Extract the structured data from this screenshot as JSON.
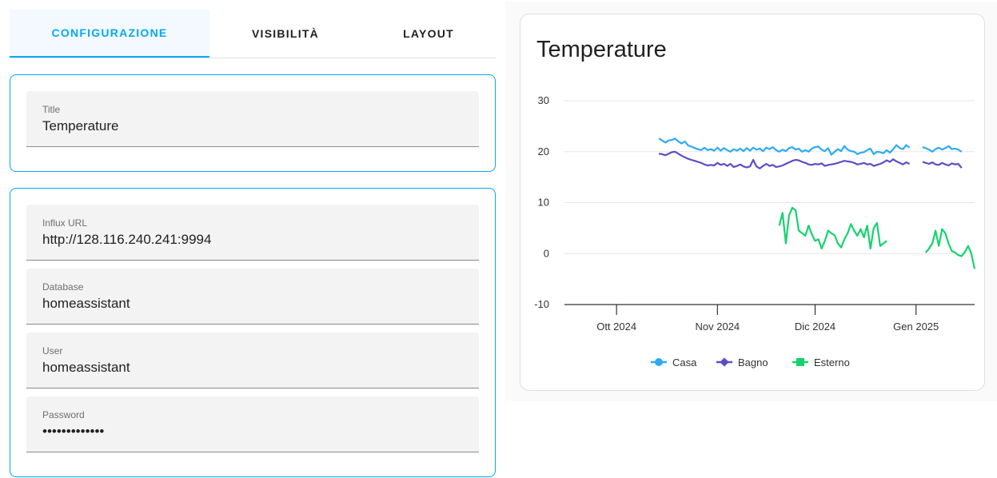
{
  "tabs": [
    {
      "label": "CONFIGURAZIONE",
      "active": true
    },
    {
      "label": "VISIBILITÀ",
      "active": false
    },
    {
      "label": "LAYOUT",
      "active": false
    }
  ],
  "title_field": {
    "label": "Title",
    "value": "Temperature"
  },
  "connection_fields": {
    "influx_url": {
      "label": "Influx URL",
      "value": "http://128.116.240.241:9994"
    },
    "database": {
      "label": "Database",
      "value": "homeassistant"
    },
    "user": {
      "label": "User",
      "value": "homeassistant"
    },
    "password": {
      "label": "Password",
      "value": "•••••••••••••"
    }
  },
  "colors": {
    "accent": "#03a9f4",
    "casa": "#2eaaf3",
    "bagno": "#5a4ec5",
    "esterno": "#16d26e"
  },
  "chart_data": {
    "type": "line",
    "title": "Temperature",
    "xlabel": "",
    "ylabel": "",
    "ylim": [
      -10,
      30
    ],
    "yticks": [
      "30",
      "20",
      "10",
      "0",
      "-10"
    ],
    "xticks": [
      {
        "label": "Ott 2024",
        "day": 0
      },
      {
        "label": "Nov 2024",
        "day": 31
      },
      {
        "label": "Dic 2024",
        "day": 61
      },
      {
        "label": "Gen 2025",
        "day": 92
      }
    ],
    "x_unit": "days since 2024-10-01",
    "grid": true,
    "legend_position": "bottom",
    "series": [
      {
        "name": "Casa",
        "color": "#2eaaf3",
        "marker": "circle",
        "segments": [
          [
            [
              13,
              22.6
            ],
            [
              14,
              22.2
            ],
            [
              15,
              21.8
            ],
            [
              16,
              22.2
            ],
            [
              17,
              22.3
            ],
            [
              18,
              22.6
            ],
            [
              19,
              22.0
            ],
            [
              20,
              21.6
            ],
            [
              21,
              22.0
            ],
            [
              22,
              21.2
            ],
            [
              23,
              21.0
            ],
            [
              24,
              20.7
            ],
            [
              25,
              20.5
            ],
            [
              26,
              20.3
            ],
            [
              27,
              20.8
            ],
            [
              28,
              20.3
            ],
            [
              29,
              20.5
            ],
            [
              30,
              20.2
            ],
            [
              31,
              20.8
            ],
            [
              32,
              20.2
            ],
            [
              33,
              20.7
            ],
            [
              34,
              20.3
            ],
            [
              35,
              20.0
            ],
            [
              36,
              20.5
            ],
            [
              37,
              20.2
            ],
            [
              38,
              20.6
            ],
            [
              39,
              20.1
            ],
            [
              40,
              20.7
            ],
            [
              41,
              20.2
            ],
            [
              42,
              20.8
            ],
            [
              43,
              20.4
            ],
            [
              44,
              20.6
            ],
            [
              45,
              20.1
            ],
            [
              46,
              20.8
            ],
            [
              47,
              20.5
            ],
            [
              48,
              20.9
            ],
            [
              49,
              20.3
            ],
            [
              50,
              20.0
            ],
            [
              51,
              20.4
            ],
            [
              52,
              20.1
            ],
            [
              53,
              20.7
            ],
            [
              54,
              20.9
            ],
            [
              55,
              20.4
            ],
            [
              56,
              20.6
            ],
            [
              57,
              20.0
            ],
            [
              58,
              20.3
            ],
            [
              59,
              20.0
            ],
            [
              60,
              20.6
            ],
            [
              61,
              20.9
            ],
            [
              62,
              21.0
            ],
            [
              63,
              20.4
            ],
            [
              64,
              20.1
            ],
            [
              65,
              20.7
            ],
            [
              66,
              19.4
            ],
            [
              67,
              20.0
            ],
            [
              68,
              20.5
            ],
            [
              69,
              20.1
            ],
            [
              70,
              21.1
            ],
            [
              71,
              20.4
            ],
            [
              72,
              20.1
            ],
            [
              73,
              20.0
            ],
            [
              74,
              19.5
            ],
            [
              75,
              19.8
            ],
            [
              76,
              19.9
            ],
            [
              77,
              20.3
            ],
            [
              78,
              20.6
            ],
            [
              79,
              19.5
            ],
            [
              80,
              20.0
            ],
            [
              81,
              19.9
            ],
            [
              82,
              19.7
            ],
            [
              83,
              20.3
            ],
            [
              84,
              19.8
            ],
            [
              85,
              20.5
            ],
            [
              86,
              21.3
            ],
            [
              87,
              20.7
            ],
            [
              88,
              20.5
            ],
            [
              89,
              21.3
            ],
            [
              90,
              20.8
            ]
          ],
          [
            [
              94,
              20.9
            ],
            [
              95,
              20.7
            ],
            [
              96,
              20.4
            ],
            [
              97,
              20.0
            ],
            [
              98,
              20.5
            ],
            [
              99,
              20.8
            ],
            [
              100,
              20.4
            ],
            [
              101,
              20.7
            ],
            [
              102,
              21.1
            ],
            [
              103,
              20.5
            ],
            [
              104,
              20.6
            ],
            [
              105,
              20.4
            ],
            [
              106,
              20.0
            ]
          ]
        ]
      },
      {
        "name": "Bagno",
        "color": "#5a4ec5",
        "marker": "diamond",
        "segments": [
          [
            [
              13,
              19.6
            ],
            [
              14,
              19.5
            ],
            [
              15,
              19.3
            ],
            [
              16,
              19.6
            ],
            [
              17,
              19.9
            ],
            [
              18,
              20.0
            ],
            [
              19,
              19.6
            ],
            [
              20,
              19.2
            ],
            [
              21,
              18.9
            ],
            [
              22,
              18.6
            ],
            [
              23,
              18.4
            ],
            [
              24,
              18.2
            ],
            [
              25,
              18.0
            ],
            [
              26,
              17.8
            ],
            [
              27,
              17.5
            ],
            [
              28,
              17.3
            ],
            [
              29,
              17.4
            ],
            [
              30,
              17.3
            ],
            [
              31,
              17.8
            ],
            [
              32,
              17.4
            ],
            [
              33,
              17.6
            ],
            [
              34,
              17.2
            ],
            [
              35,
              17.6
            ],
            [
              36,
              17.0
            ],
            [
              37,
              17.2
            ],
            [
              38,
              17.5
            ],
            [
              39,
              17.1
            ],
            [
              40,
              16.9
            ],
            [
              41,
              17.1
            ],
            [
              42,
              18.4
            ],
            [
              43,
              17.1
            ],
            [
              44,
              16.7
            ],
            [
              45,
              17.2
            ],
            [
              46,
              17.6
            ],
            [
              47,
              17.2
            ],
            [
              48,
              17.4
            ],
            [
              49,
              17.0
            ],
            [
              50,
              17.1
            ],
            [
              51,
              17.3
            ],
            [
              52,
              17.6
            ],
            [
              53,
              17.9
            ],
            [
              54,
              18.2
            ],
            [
              55,
              18.4
            ],
            [
              56,
              18.3
            ],
            [
              57,
              18.0
            ],
            [
              58,
              17.8
            ],
            [
              59,
              17.5
            ],
            [
              60,
              17.4
            ],
            [
              61,
              17.6
            ],
            [
              62,
              17.5
            ],
            [
              63,
              17.7
            ],
            [
              64,
              17.2
            ],
            [
              65,
              17.4
            ],
            [
              66,
              17.5
            ],
            [
              67,
              17.6
            ],
            [
              68,
              17.8
            ],
            [
              69,
              18.0
            ],
            [
              70,
              18.2
            ],
            [
              71,
              18.1
            ],
            [
              72,
              18.0
            ],
            [
              73,
              17.8
            ],
            [
              74,
              17.5
            ],
            [
              75,
              17.6
            ],
            [
              76,
              17.8
            ],
            [
              77,
              17.5
            ],
            [
              78,
              17.6
            ],
            [
              79,
              17.2
            ],
            [
              80,
              17.4
            ],
            [
              81,
              17.6
            ],
            [
              82,
              17.9
            ],
            [
              83,
              18.3
            ],
            [
              84,
              18.0
            ],
            [
              85,
              18.5
            ],
            [
              86,
              18.1
            ],
            [
              87,
              17.8
            ],
            [
              88,
              17.5
            ],
            [
              89,
              17.9
            ],
            [
              90,
              17.6
            ]
          ],
          [
            [
              94,
              18.0
            ],
            [
              95,
              17.8
            ],
            [
              96,
              17.6
            ],
            [
              97,
              17.9
            ],
            [
              98,
              17.5
            ],
            [
              99,
              17.4
            ],
            [
              100,
              17.8
            ],
            [
              101,
              17.5
            ],
            [
              102,
              17.3
            ],
            [
              103,
              17.7
            ],
            [
              104,
              17.5
            ],
            [
              105,
              17.6
            ],
            [
              106,
              16.8
            ]
          ]
        ]
      },
      {
        "name": "Esterno",
        "color": "#16d26e",
        "marker": "square",
        "segments": [
          [
            [
              50,
              5.5
            ],
            [
              51,
              8.0
            ],
            [
              52,
              2.0
            ],
            [
              53,
              7.5
            ],
            [
              54,
              9.0
            ],
            [
              55,
              8.5
            ],
            [
              56,
              4.5
            ],
            [
              57,
              4.0
            ],
            [
              58,
              3.5
            ],
            [
              59,
              5.5
            ],
            [
              60,
              3.8
            ],
            [
              61,
              2.5
            ],
            [
              62,
              2.8
            ],
            [
              63,
              1.0
            ],
            [
              64,
              2.5
            ],
            [
              65,
              4.5
            ],
            [
              66,
              4.0
            ],
            [
              67,
              3.6
            ],
            [
              68,
              2.0
            ],
            [
              69,
              1.2
            ],
            [
              70,
              2.8
            ],
            [
              71,
              4.0
            ],
            [
              72,
              5.8
            ],
            [
              73,
              4.5
            ],
            [
              74,
              3.5
            ],
            [
              75,
              4.8
            ],
            [
              76,
              3.2
            ],
            [
              77,
              5.5
            ],
            [
              78,
              1.0
            ],
            [
              79,
              5.0
            ],
            [
              80,
              6.0
            ],
            [
              81,
              1.5
            ],
            [
              82,
              2.0
            ],
            [
              83,
              2.5
            ]
          ],
          [
            [
              95,
              0.2
            ],
            [
              96,
              1.0
            ],
            [
              97,
              2.0
            ],
            [
              98,
              4.5
            ],
            [
              99,
              1.5
            ],
            [
              100,
              4.8
            ],
            [
              101,
              4.0
            ],
            [
              102,
              2.0
            ],
            [
              103,
              0.5
            ],
            [
              104,
              0.2
            ],
            [
              105,
              -0.3
            ],
            [
              106,
              -0.5
            ],
            [
              107,
              0.3
            ],
            [
              108,
              1.5
            ],
            [
              109,
              0.0
            ],
            [
              110,
              -3.0
            ]
          ]
        ]
      }
    ]
  }
}
